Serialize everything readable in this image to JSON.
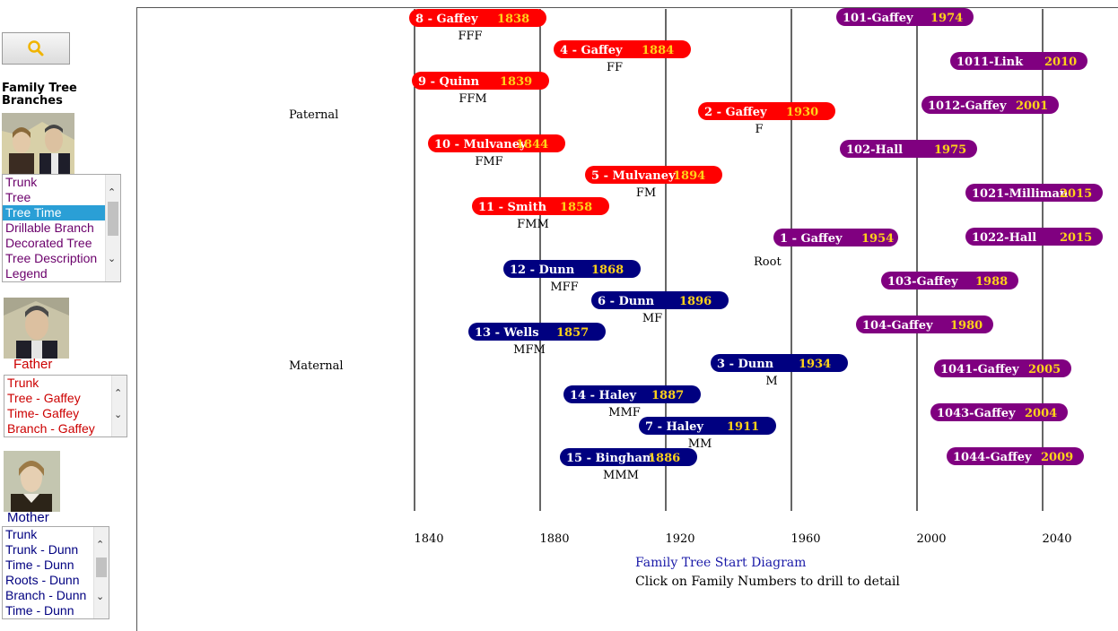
{
  "colors": {
    "paternal": "#ff0000",
    "maternal": "#000080",
    "descendant": "#800080",
    "year": "#ffd21a",
    "father_caption": "#cc0000",
    "mother_caption": "#000080",
    "tree_list_text": "#6b006b",
    "father_list_text": "#cc0000",
    "mother_list_text": "#000080",
    "selected_bg": "#2a9fd6"
  },
  "sidebar": {
    "search_icon": "search-icon",
    "heading": "Family Tree Branches",
    "tree_list": {
      "options": [
        "Trunk",
        "Tree",
        "Tree Time",
        "Drillable Branch",
        "Decorated Tree",
        "Tree Description",
        "Legend"
      ],
      "selected": "Tree Time"
    },
    "father": {
      "caption": "Father",
      "options": [
        "Trunk",
        "Tree - Gaffey",
        "Time- Gaffey",
        "Branch - Gaffey"
      ]
    },
    "mother": {
      "caption": "Mother",
      "options": [
        "Trunk",
        "Trunk - Dunn",
        "Time - Dunn",
        "Roots - Dunn",
        "Branch - Dunn",
        "Time - Dunn"
      ]
    }
  },
  "footer": {
    "title": "Family Tree Start Diagram",
    "note": "Click on Family Numbers to drill to detail"
  },
  "chart_data": {
    "type": "timeline",
    "x_ticks": [
      1840,
      1880,
      1920,
      1960,
      2000,
      2040
    ],
    "xlim": [
      1840,
      2040
    ],
    "grid": true,
    "side_labels": {
      "paternal": "Paternal",
      "maternal": "Maternal",
      "root": "Root"
    },
    "items": [
      {
        "label": "8 - Gaffey",
        "year": "1838",
        "code": "FFF",
        "group": "paternal"
      },
      {
        "label": "4 - Gaffey",
        "year": "1884",
        "code": "FF",
        "group": "paternal"
      },
      {
        "label": "9 - Quinn",
        "year": "1839",
        "code": "FFM",
        "group": "paternal"
      },
      {
        "label": "2 - Gaffey",
        "year": "1930",
        "code": "F",
        "group": "paternal"
      },
      {
        "label": "10 - Mulvaney",
        "year": "1844",
        "code": "FMF",
        "group": "paternal"
      },
      {
        "label": "5 - Mulvaney",
        "year": "1894",
        "code": "FM",
        "group": "paternal"
      },
      {
        "label": "11 - Smith",
        "year": "1858",
        "code": "FMM",
        "group": "paternal"
      },
      {
        "label": "1 - Gaffey",
        "year": "1954",
        "code": "",
        "group": "descendant"
      },
      {
        "label": "12 - Dunn",
        "year": "1868",
        "code": "MFF",
        "group": "maternal"
      },
      {
        "label": "6 - Dunn",
        "year": "1896",
        "code": "MF",
        "group": "maternal"
      },
      {
        "label": "13 - Wells",
        "year": "1857",
        "code": "MFM",
        "group": "maternal"
      },
      {
        "label": "3 - Dunn",
        "year": "1934",
        "code": "M",
        "group": "maternal"
      },
      {
        "label": "14 - Haley",
        "year": "1887",
        "code": "MMF",
        "group": "maternal"
      },
      {
        "label": "7 - Haley",
        "year": "1911",
        "code": "MM",
        "group": "maternal"
      },
      {
        "label": "15 - Bingham",
        "year": "1886",
        "code": "MMM",
        "group": "maternal"
      },
      {
        "label": "101-Gaffey",
        "year": "1974",
        "code": "",
        "group": "descendant"
      },
      {
        "label": "1011-Link",
        "year": "2010",
        "code": "",
        "group": "descendant"
      },
      {
        "label": "1012-Gaffey",
        "year": "2001",
        "code": "",
        "group": "descendant"
      },
      {
        "label": "102-Hall",
        "year": "1975",
        "code": "",
        "group": "descendant"
      },
      {
        "label": "1021-Milliman",
        "year": "2015",
        "code": "",
        "group": "descendant"
      },
      {
        "label": "1022-Hall",
        "year": "2015",
        "code": "",
        "group": "descendant"
      },
      {
        "label": "103-Gaffey",
        "year": "1988",
        "code": "",
        "group": "descendant"
      },
      {
        "label": "104-Gaffey",
        "year": "1980",
        "code": "",
        "group": "descendant"
      },
      {
        "label": "1041-Gaffey",
        "year": "2005",
        "code": "",
        "group": "descendant"
      },
      {
        "label": "1043-Gaffey",
        "year": "2004",
        "code": "",
        "group": "descendant"
      },
      {
        "label": "1044-Gaffey",
        "year": "2009",
        "code": "",
        "group": "descendant"
      }
    ]
  }
}
